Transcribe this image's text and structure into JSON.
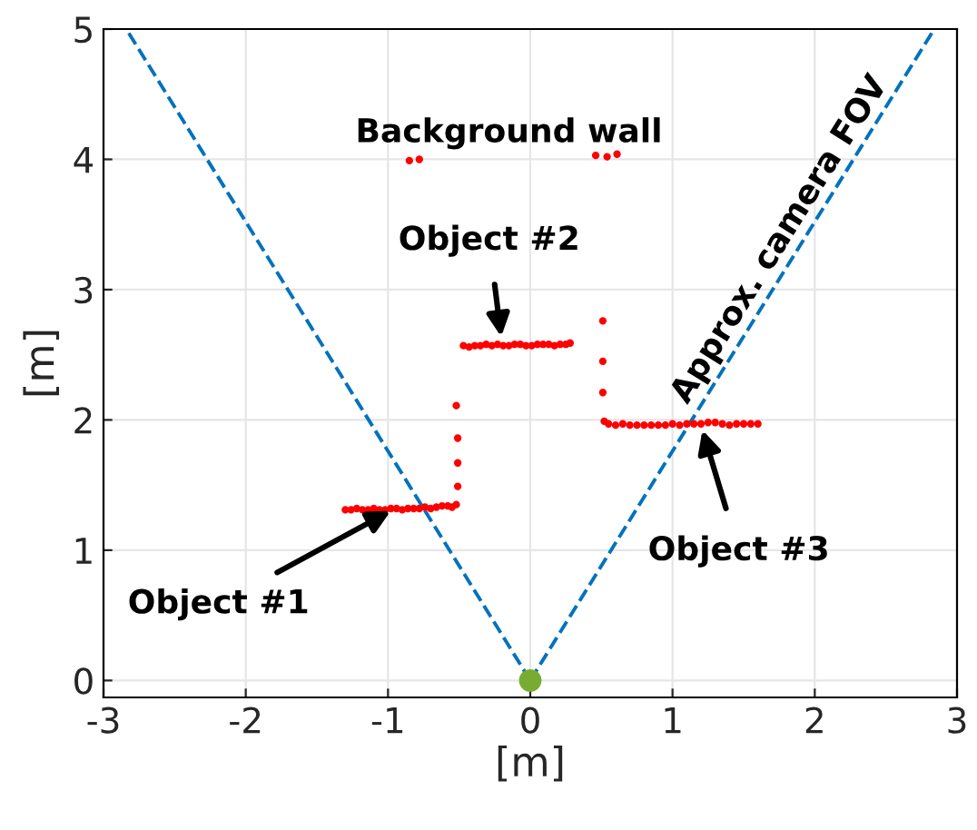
{
  "chart_data": {
    "type": "scatter",
    "xlabel": "[m]",
    "ylabel": "[m]",
    "xlim": [
      -3,
      3
    ],
    "ylim": [
      -0.13,
      5
    ],
    "xticks": [
      -3,
      -2,
      -1,
      0,
      1,
      2,
      3
    ],
    "yticks": [
      0,
      1,
      2,
      3,
      4,
      5
    ],
    "grid": true,
    "legend": false,
    "series": [
      {
        "type": "scatter",
        "color": "#ff0000",
        "marker": "circle",
        "x": [
          -1.3,
          -1.26,
          -1.22,
          -1.18,
          -1.14,
          -1.1,
          -1.06,
          -1.02,
          -0.98,
          -0.94,
          -0.9,
          -0.86,
          -0.82,
          -0.78,
          -0.74,
          -0.7,
          -0.66,
          -0.62,
          -0.58,
          -0.55,
          -0.52,
          -0.51,
          -0.51,
          -0.51,
          -0.52,
          -0.85,
          -0.78
        ],
        "values": [
          1.31,
          1.31,
          1.32,
          1.31,
          1.31,
          1.32,
          1.31,
          1.31,
          1.32,
          1.32,
          1.31,
          1.32,
          1.32,
          1.32,
          1.33,
          1.32,
          1.33,
          1.34,
          1.34,
          1.33,
          1.35,
          1.49,
          1.67,
          1.86,
          2.11,
          3.99,
          4.0
        ]
      },
      {
        "type": "scatter",
        "color": "#ff0000",
        "marker": "circle",
        "x": [
          -0.47,
          -0.43,
          -0.39,
          -0.35,
          -0.31,
          -0.27,
          -0.23,
          -0.19,
          -0.15,
          -0.11,
          -0.07,
          -0.03,
          0.01,
          0.05,
          0.09,
          0.13,
          0.17,
          0.21,
          0.25,
          0.28
        ],
        "values": [
          2.57,
          2.56,
          2.57,
          2.57,
          2.58,
          2.57,
          2.58,
          2.57,
          2.57,
          2.58,
          2.58,
          2.57,
          2.57,
          2.58,
          2.58,
          2.58,
          2.57,
          2.58,
          2.58,
          2.59
        ]
      },
      {
        "type": "scatter",
        "color": "#ff0000",
        "marker": "circle",
        "x": [
          0.46,
          0.54,
          0.61,
          0.51,
          0.51,
          0.51,
          0.52,
          0.55,
          0.6,
          0.65,
          0.7,
          0.75,
          0.8,
          0.85,
          0.9,
          0.95,
          1.0,
          1.05,
          1.1,
          1.15,
          1.2,
          1.25,
          1.3,
          1.35,
          1.4,
          1.45,
          1.5,
          1.55,
          1.6
        ],
        "values": [
          4.03,
          4.02,
          4.04,
          2.76,
          2.45,
          2.21,
          1.99,
          1.97,
          1.96,
          1.97,
          1.96,
          1.96,
          1.96,
          1.96,
          1.96,
          1.96,
          1.97,
          1.96,
          1.97,
          1.97,
          1.97,
          1.98,
          1.98,
          1.97,
          1.96,
          1.97,
          1.97,
          1.97,
          1.97
        ]
      },
      {
        "type": "line",
        "color": "#0072bd",
        "line_style": "dashed",
        "marker": "none",
        "x": [
          0,
          -2.84
        ],
        "values": [
          0,
          5
        ]
      },
      {
        "type": "line",
        "color": "#0072bd",
        "line_style": "dashed",
        "marker": "none",
        "x": [
          0,
          2.84
        ],
        "values": [
          0,
          5
        ]
      },
      {
        "type": "scatter",
        "color": "#77ac30",
        "marker": "circle",
        "x": [
          0
        ],
        "values": [
          0
        ]
      }
    ],
    "annotations": [
      {
        "text": "Object #1",
        "x": -0.95,
        "y": 1.32
      },
      {
        "text": "Object #2",
        "x": -0.2,
        "y": 2.6
      },
      {
        "text": "Object #3",
        "x": 1.2,
        "y": 1.96
      },
      "Background wall",
      "Approx. camera FOV"
    ]
  }
}
